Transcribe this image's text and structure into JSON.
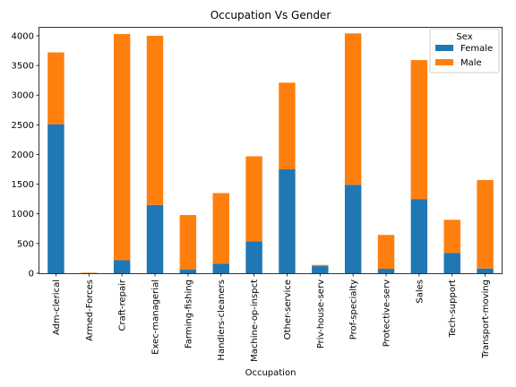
{
  "chart_data": {
    "type": "bar",
    "stacked": true,
    "title": "Occupation Vs Gender",
    "xlabel": "Occupation",
    "ylabel": "",
    "ylim": [
      0,
      4150
    ],
    "yticks": [
      0,
      500,
      1000,
      1500,
      2000,
      2500,
      3000,
      3500,
      4000
    ],
    "categories": [
      "Adm-clerical",
      "Armed-Forces",
      "Craft-repair",
      "Exec-managerial",
      "Farming-fishing",
      "Handlers-cleaners",
      "Machine-op-inspct",
      "Other-service",
      "Priv-house-serv",
      "Prof-specialty",
      "Protective-serv",
      "Sales",
      "Tech-support",
      "Transport-moving"
    ],
    "series": [
      {
        "name": "Female",
        "color": "#1f77b4",
        "values": [
          2510,
          0,
          220,
          1150,
          60,
          160,
          540,
          1750,
          120,
          1490,
          75,
          1250,
          340,
          80
        ]
      },
      {
        "name": "Male",
        "color": "#ff7f0e",
        "values": [
          1210,
          9,
          3810,
          2850,
          920,
          1190,
          1430,
          1460,
          20,
          2550,
          570,
          2340,
          560,
          1490
        ]
      }
    ],
    "legend": {
      "title": "Sex",
      "position": "top-right"
    },
    "grid": false
  }
}
